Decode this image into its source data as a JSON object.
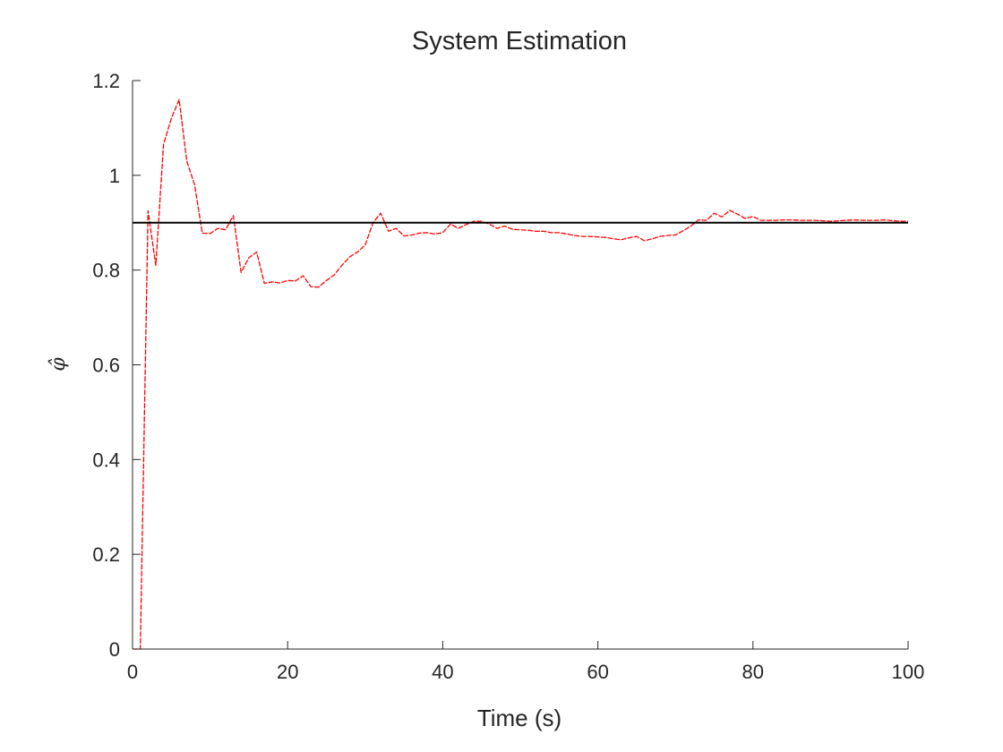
{
  "chart_data": {
    "type": "line",
    "title": "System Estimation",
    "xlabel": "Time (s)",
    "ylabel": "φ̂",
    "xlim": [
      0,
      100
    ],
    "ylim": [
      0,
      1.2
    ],
    "xticks": [
      0,
      20,
      40,
      60,
      80,
      100
    ],
    "xtick_labels": [
      "0",
      "20",
      "40",
      "60",
      "80",
      "100"
    ],
    "yticks": [
      0,
      0.2,
      0.4,
      0.6,
      0.8,
      1,
      1.2
    ],
    "ytick_labels": [
      "0",
      "0.2",
      "0.4",
      "0.6",
      "0.8",
      "1",
      "1.2"
    ],
    "grid": false,
    "series": [
      {
        "color": "#ff0000",
        "style": "dashed",
        "x": [
          0,
          1,
          2,
          3,
          4,
          5,
          6,
          7,
          8,
          9,
          10,
          11,
          12,
          13,
          14,
          15,
          16,
          17,
          18,
          19,
          20,
          21,
          22,
          23,
          24,
          25,
          26,
          27,
          28,
          29,
          30,
          31,
          32,
          33,
          34,
          35,
          36,
          37,
          38,
          39,
          40,
          41,
          42,
          43,
          44,
          45,
          46,
          47,
          48,
          49,
          50,
          51,
          52,
          53,
          54,
          55,
          56,
          57,
          58,
          59,
          60,
          61,
          62,
          63,
          64,
          65,
          66,
          67,
          68,
          69,
          70,
          71,
          72,
          73,
          74,
          75,
          76,
          77,
          78,
          79,
          80,
          81,
          82,
          83,
          84,
          85,
          86,
          87,
          88,
          89,
          90,
          91,
          92,
          93,
          94,
          95,
          96,
          97,
          98,
          99,
          100
        ],
        "y": [
          0,
          0,
          0.925,
          0.81,
          1.065,
          1.12,
          1.16,
          1.03,
          0.98,
          0.878,
          0.877,
          0.888,
          0.885,
          0.915,
          0.795,
          0.826,
          0.838,
          0.772,
          0.775,
          0.773,
          0.778,
          0.777,
          0.788,
          0.765,
          0.764,
          0.778,
          0.79,
          0.81,
          0.828,
          0.838,
          0.853,
          0.9,
          0.92,
          0.882,
          0.888,
          0.872,
          0.874,
          0.878,
          0.879,
          0.876,
          0.879,
          0.897,
          0.888,
          0.896,
          0.903,
          0.903,
          0.897,
          0.888,
          0.893,
          0.886,
          0.885,
          0.884,
          0.882,
          0.882,
          0.879,
          0.879,
          0.876,
          0.873,
          0.871,
          0.871,
          0.87,
          0.869,
          0.866,
          0.864,
          0.868,
          0.871,
          0.862,
          0.866,
          0.871,
          0.873,
          0.874,
          0.883,
          0.893,
          0.906,
          0.905,
          0.92,
          0.912,
          0.926,
          0.918,
          0.909,
          0.913,
          0.905,
          0.905,
          0.905,
          0.906,
          0.906,
          0.905,
          0.905,
          0.905,
          0.904,
          0.903,
          0.904,
          0.905,
          0.906,
          0.905,
          0.905,
          0.905,
          0.906,
          0.904,
          0.903,
          0.903
        ]
      },
      {
        "color": "#000000",
        "style": "solid",
        "x": [
          0,
          100
        ],
        "y": [
          0.9,
          0.9
        ]
      }
    ]
  }
}
